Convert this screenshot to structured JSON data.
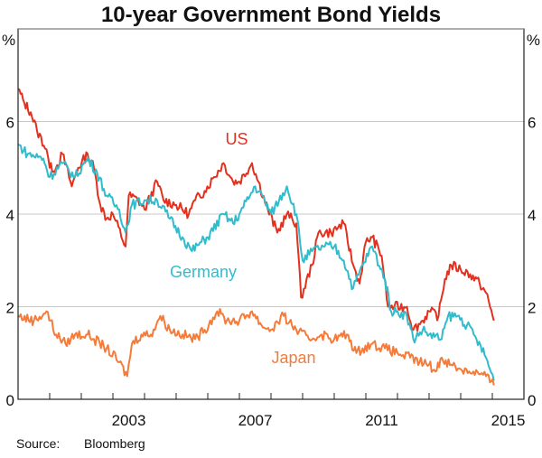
{
  "chart_data": {
    "type": "line",
    "title": "10-year Government Bond Yields",
    "ylabel_left": "%",
    "ylabel_right": "%",
    "xlim": [
      2000,
      2016
    ],
    "ylim": [
      0,
      8
    ],
    "yticks": [
      0,
      2,
      4,
      6
    ],
    "xtick_labels": [
      "2003",
      "2007",
      "2011",
      "2015"
    ],
    "grid": true,
    "source": "Source:",
    "source_name": "Bloomberg",
    "series": [
      {
        "name": "US",
        "color": "#e2311f",
        "x": [
          2000.0,
          2000.2,
          2000.4,
          2000.6,
          2000.9,
          2001.0,
          2001.2,
          2001.4,
          2001.7,
          2001.9,
          2002.2,
          2002.4,
          2002.6,
          2002.8,
          2003.0,
          2003.4,
          2003.5,
          2003.8,
          2004.0,
          2004.4,
          2004.6,
          2005.0,
          2005.4,
          2005.6,
          2005.9,
          2006.2,
          2006.5,
          2006.8,
          2007.0,
          2007.4,
          2007.6,
          2007.9,
          2008.2,
          2008.5,
          2008.8,
          2008.95,
          2009.3,
          2009.5,
          2009.9,
          2010.3,
          2010.6,
          2010.8,
          2011.0,
          2011.2,
          2011.5,
          2011.7,
          2011.9,
          2012.3,
          2012.5,
          2012.8,
          2013.0,
          2013.3,
          2013.5,
          2013.7,
          2014.0,
          2014.3,
          2014.6,
          2014.8,
          2015.05
        ],
        "y": [
          6.7,
          6.4,
          6.2,
          5.8,
          5.4,
          5.0,
          5.0,
          5.3,
          4.6,
          5.0,
          5.3,
          5.0,
          4.2,
          3.9,
          4.0,
          3.3,
          4.4,
          4.3,
          4.1,
          4.7,
          4.3,
          4.2,
          4.0,
          4.3,
          4.5,
          4.8,
          5.1,
          4.7,
          4.7,
          5.1,
          4.7,
          4.1,
          3.6,
          4.0,
          3.8,
          2.2,
          2.9,
          3.6,
          3.6,
          3.8,
          2.9,
          2.5,
          3.4,
          3.5,
          3.1,
          2.0,
          2.0,
          2.0,
          1.5,
          1.7,
          1.9,
          1.8,
          2.6,
          2.9,
          2.8,
          2.7,
          2.5,
          2.3,
          1.7
        ]
      },
      {
        "name": "Germany",
        "color": "#31bccc",
        "x": [
          2000.0,
          2000.3,
          2000.8,
          2001.0,
          2001.4,
          2001.8,
          2002.2,
          2002.5,
          2002.8,
          2003.2,
          2003.4,
          2003.6,
          2004.0,
          2004.4,
          2004.8,
          2005.2,
          2005.5,
          2005.8,
          2006.0,
          2006.5,
          2006.8,
          2007.0,
          2007.5,
          2007.8,
          2008.0,
          2008.5,
          2008.8,
          2009.0,
          2009.3,
          2009.7,
          2010.0,
          2010.3,
          2010.6,
          2010.9,
          2011.2,
          2011.6,
          2011.8,
          2012.0,
          2012.3,
          2012.5,
          2012.8,
          2013.0,
          2013.4,
          2013.6,
          2013.9,
          2014.2,
          2014.5,
          2014.8,
          2015.05
        ],
        "y": [
          5.5,
          5.3,
          5.2,
          4.8,
          5.1,
          4.8,
          5.2,
          4.9,
          4.4,
          4.1,
          3.6,
          4.2,
          4.3,
          4.3,
          3.9,
          3.5,
          3.2,
          3.4,
          3.5,
          4.0,
          3.8,
          4.0,
          4.6,
          4.3,
          4.0,
          4.6,
          4.0,
          3.0,
          3.2,
          3.3,
          3.3,
          3.0,
          2.4,
          2.9,
          3.3,
          2.6,
          1.9,
          1.9,
          1.8,
          1.3,
          1.5,
          1.4,
          1.3,
          1.8,
          1.8,
          1.6,
          1.3,
          0.9,
          0.4
        ]
      },
      {
        "name": "Japan",
        "color": "#f47b3a",
        "x": [
          2000.0,
          2000.5,
          2000.9,
          2001.2,
          2001.5,
          2001.8,
          2002.2,
          2002.4,
          2002.8,
          2003.2,
          2003.45,
          2003.6,
          2003.9,
          2004.2,
          2004.5,
          2004.8,
          2005.2,
          2005.6,
          2005.9,
          2006.3,
          2006.6,
          2007.0,
          2007.4,
          2007.7,
          2008.0,
          2008.4,
          2008.8,
          2009.2,
          2009.6,
          2010.0,
          2010.4,
          2010.7,
          2010.9,
          2011.2,
          2011.6,
          2012.0,
          2012.4,
          2012.7,
          2013.0,
          2013.2,
          2013.4,
          2013.7,
          2014.0,
          2014.4,
          2014.8,
          2015.05
        ],
        "y": [
          1.8,
          1.7,
          1.9,
          1.4,
          1.2,
          1.4,
          1.4,
          1.3,
          1.1,
          0.8,
          0.5,
          1.2,
          1.4,
          1.4,
          1.8,
          1.5,
          1.4,
          1.3,
          1.5,
          1.9,
          1.7,
          1.7,
          1.9,
          1.6,
          1.5,
          1.8,
          1.5,
          1.3,
          1.4,
          1.3,
          1.4,
          1.0,
          1.1,
          1.2,
          1.1,
          1.0,
          0.9,
          0.8,
          0.75,
          0.6,
          0.9,
          0.75,
          0.65,
          0.6,
          0.5,
          0.3
        ]
      }
    ]
  }
}
